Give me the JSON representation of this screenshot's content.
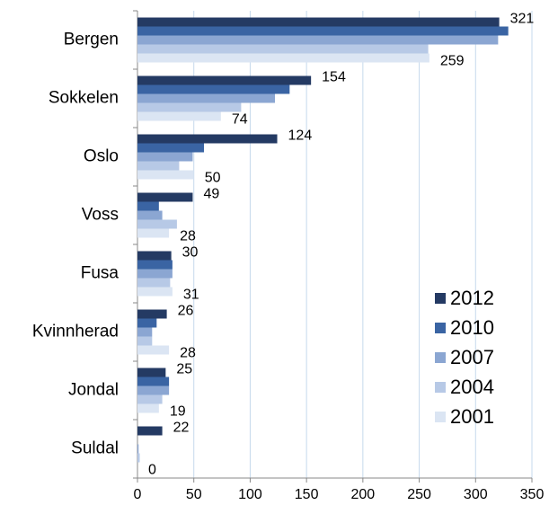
{
  "chart_data": {
    "type": "barh",
    "categories": [
      "Bergen",
      "Sokkelen",
      "Oslo",
      "Voss",
      "Fusa",
      "Kvinnherad",
      "Jondal",
      "Suldal"
    ],
    "series": [
      {
        "name": "2012",
        "color": "#243a63",
        "show_labels": true,
        "values": [
          321,
          154,
          124,
          49,
          30,
          26,
          25,
          22
        ]
      },
      {
        "name": "2010",
        "color": "#3a64a3",
        "show_labels": false,
        "values": [
          329,
          135,
          59,
          19,
          31,
          17,
          28,
          0
        ]
      },
      {
        "name": "2007",
        "color": "#8ba6d2",
        "show_labels": false,
        "values": [
          320,
          122,
          49,
          22,
          31,
          13,
          28,
          1
        ]
      },
      {
        "name": "2004",
        "color": "#b7c9e6",
        "show_labels": false,
        "values": [
          258,
          92,
          37,
          35,
          29,
          13,
          22,
          2
        ]
      },
      {
        "name": "2001",
        "color": "#dbe5f3",
        "show_labels": true,
        "values": [
          259,
          74,
          50,
          28,
          31,
          28,
          19,
          0
        ]
      }
    ],
    "xlim": [
      0,
      350
    ],
    "xticks": [
      0,
      50,
      100,
      150,
      200,
      250,
      300,
      350
    ],
    "grid": true,
    "legend": "lower right"
  }
}
